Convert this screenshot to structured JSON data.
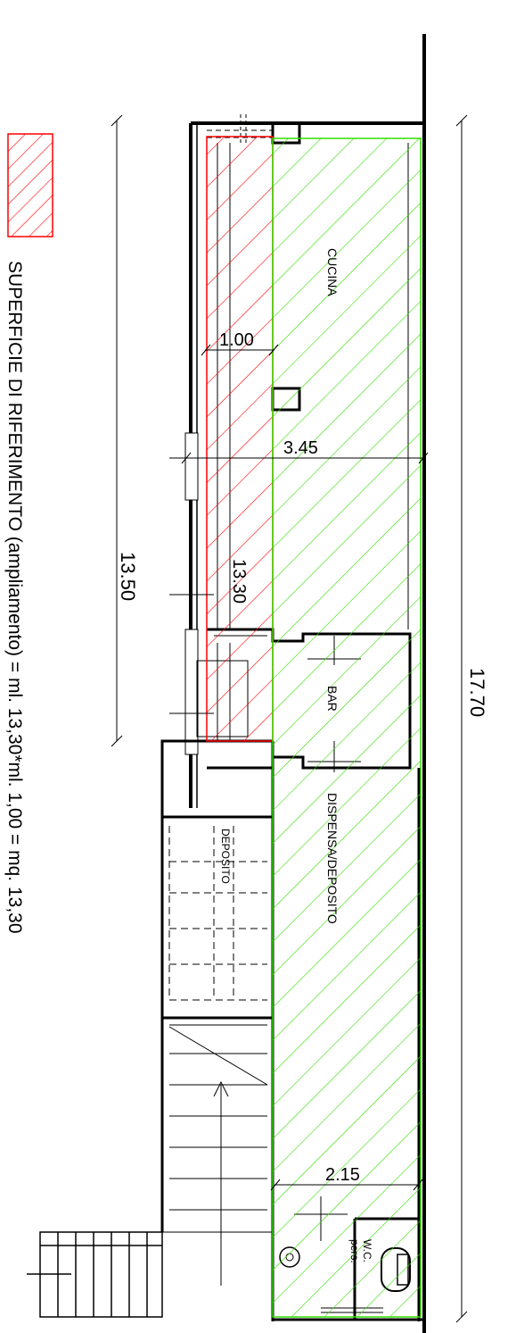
{
  "plan": {
    "rooms": {
      "cucina": "CUCINA",
      "bar": "BAR",
      "dispensa": "DISPENSA/DEPOSITO",
      "deposito": "DEPOSITO",
      "wc": "W.C.",
      "wc_pers": "pers."
    },
    "dimensions": {
      "overall_length": "17.70",
      "reference_length": "13.50",
      "hatched_length": "13.30",
      "hatched_width": "1.00",
      "kitchen_depth": "3.45",
      "service_depth": "2.15"
    }
  },
  "legend": {
    "hatch_color": "#ff0000",
    "existing_color": "#33dd00",
    "label": "SUPERFICIE DI RIFERIMENTO (ampliamento)  = ml. 13,30*ml. 1,00 = mq. 13,30"
  }
}
